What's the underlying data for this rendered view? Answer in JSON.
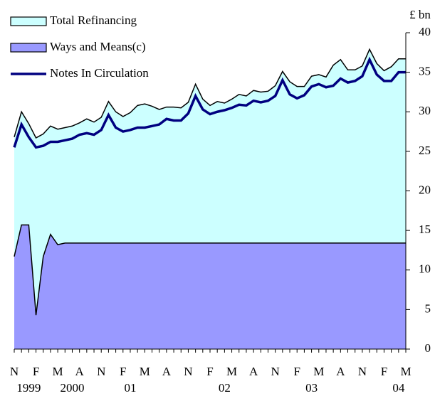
{
  "chart_data": {
    "type": "area",
    "y_unit_label": "£ bn",
    "categories": [
      "N",
      null,
      null,
      "F",
      null,
      null,
      "M",
      null,
      null,
      "A",
      null,
      null,
      "N",
      null,
      null,
      "F",
      null,
      null,
      "M",
      null,
      null,
      "A",
      null,
      null,
      "N",
      null,
      null,
      "F",
      null,
      null,
      "M",
      null,
      null,
      "A",
      null,
      null,
      "N",
      null,
      null,
      "F",
      null,
      null,
      "M",
      null,
      null,
      "A",
      null,
      null,
      "N",
      null,
      null,
      "F",
      null,
      null,
      "M"
    ],
    "x_group_labels": [
      {
        "category": 2,
        "label": "1999"
      },
      {
        "category": 8,
        "label": "2000"
      },
      {
        "category": 16,
        "label": "01"
      },
      {
        "category": 29,
        "label": "02"
      },
      {
        "category": 41,
        "label": "03"
      },
      {
        "category": 53,
        "label": "04"
      }
    ],
    "series": [
      {
        "name": "Total Refinancing",
        "style": "area",
        "color": "#ccffff",
        "outline": "#000000",
        "values": [
          26.8,
          30.0,
          28.5,
          26.7,
          27.2,
          28.2,
          27.8,
          28.0,
          28.2,
          28.6,
          29.1,
          28.7,
          29.3,
          31.3,
          30.0,
          29.4,
          29.9,
          30.8,
          31.0,
          30.7,
          30.3,
          30.6,
          30.6,
          30.5,
          31.2,
          33.5,
          31.6,
          30.8,
          31.3,
          31.1,
          31.6,
          32.2,
          32.0,
          32.7,
          32.5,
          32.6,
          33.3,
          35.1,
          33.8,
          33.2,
          33.2,
          34.5,
          34.7,
          34.4,
          35.9,
          36.6,
          35.3,
          35.3,
          35.8,
          37.9,
          36.1,
          35.2,
          35.7,
          36.7,
          36.7
        ]
      },
      {
        "name": "Ways and Means(c)",
        "style": "area",
        "color": "#9999ff",
        "outline": "#000000",
        "values": [
          11.7,
          15.7,
          15.7,
          4.3,
          11.7,
          14.5,
          13.2,
          13.4,
          13.4,
          13.4,
          13.4,
          13.4,
          13.4,
          13.4,
          13.4,
          13.4,
          13.4,
          13.4,
          13.4,
          13.4,
          13.4,
          13.4,
          13.4,
          13.4,
          13.4,
          13.4,
          13.4,
          13.4,
          13.4,
          13.4,
          13.4,
          13.4,
          13.4,
          13.4,
          13.4,
          13.4,
          13.4,
          13.4,
          13.4,
          13.4,
          13.4,
          13.4,
          13.4,
          13.4,
          13.4,
          13.4,
          13.4,
          13.4,
          13.4,
          13.4,
          13.4,
          13.4,
          13.4,
          13.4,
          13.4
        ]
      },
      {
        "name": "Notes In Circulation",
        "style": "line",
        "color": "#000080",
        "values": [
          25.5,
          28.4,
          26.8,
          25.5,
          25.7,
          26.2,
          26.2,
          26.4,
          26.6,
          27.1,
          27.3,
          27.1,
          27.7,
          29.6,
          28.0,
          27.5,
          27.7,
          28.0,
          28.0,
          28.2,
          28.4,
          29.1,
          28.9,
          28.9,
          29.8,
          32.0,
          30.3,
          29.7,
          30.0,
          30.2,
          30.5,
          30.9,
          30.8,
          31.4,
          31.2,
          31.4,
          32.0,
          34.0,
          32.2,
          31.7,
          32.1,
          33.2,
          33.5,
          33.1,
          33.3,
          34.2,
          33.7,
          33.9,
          34.5,
          36.6,
          34.7,
          33.9,
          33.9,
          35.0,
          35.0
        ]
      }
    ],
    "ylim": [
      0,
      40
    ],
    "yticks": [
      0,
      5,
      10,
      15,
      20,
      25,
      30,
      35,
      40
    ],
    "y_axis_side": "right",
    "grid": false
  }
}
